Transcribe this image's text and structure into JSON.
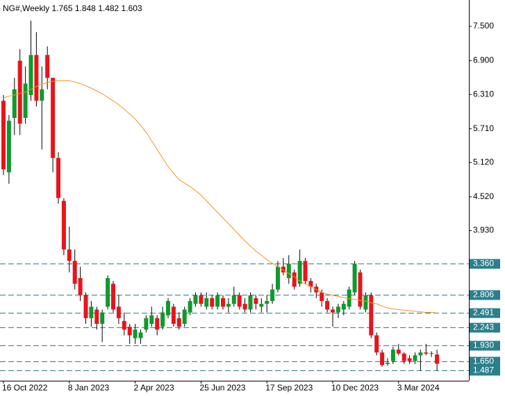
{
  "chart_data": {
    "type": "candlestick",
    "title": "NG#,Weekly  1.765 1.848 1.482 1.603",
    "categories": [
      "16 Oct 2022",
      null,
      null,
      null,
      null,
      null,
      null,
      null,
      null,
      null,
      null,
      null,
      "8 Jan 2023",
      null,
      null,
      null,
      null,
      null,
      null,
      null,
      null,
      null,
      null,
      null,
      "2 Apr 2023",
      null,
      null,
      null,
      null,
      null,
      null,
      null,
      null,
      null,
      null,
      null,
      "25 Jun 2023",
      null,
      null,
      null,
      null,
      null,
      null,
      null,
      null,
      null,
      null,
      null,
      "17 Sep 2023",
      null,
      null,
      null,
      null,
      null,
      null,
      null,
      null,
      null,
      null,
      null,
      "10 Dec 2023",
      null,
      null,
      null,
      null,
      null,
      null,
      null,
      null,
      null,
      null,
      null,
      "3 Mar 2024",
      null,
      null,
      null,
      null,
      null,
      null,
      null
    ],
    "open": [
      6.2,
      4.95,
      5.9,
      6.9,
      5.9,
      6.3,
      7.0,
      6.2,
      7.0,
      6.6,
      5.2,
      4.45,
      3.6,
      3.4,
      3.1,
      2.8,
      2.4,
      2.55,
      2.3,
      2.6,
      3.0,
      2.6,
      2.35,
      2.25,
      2.05,
      2.05,
      2.2,
      2.3,
      2.4,
      2.25,
      2.45,
      2.6,
      2.4,
      2.3,
      2.5,
      2.65,
      2.8,
      2.6,
      2.75,
      2.6,
      2.75,
      2.6,
      2.65,
      2.8,
      2.65,
      2.55,
      2.75,
      2.6,
      2.65,
      2.7,
      2.9,
      3.3,
      3.1,
      3.2,
      3.0,
      3.4,
      3.05,
      2.95,
      2.85,
      2.7,
      2.55,
      2.5,
      2.55,
      2.6,
      2.85,
      3.2,
      2.55,
      2.8,
      2.1,
      1.8,
      1.6,
      1.65,
      1.85,
      1.78,
      1.7,
      1.65,
      1.75,
      1.8,
      1.78,
      1.765
    ],
    "high": [
      6.3,
      5.95,
      6.6,
      7.1,
      6.8,
      7.6,
      7.4,
      6.8,
      7.15,
      6.6,
      5.3,
      4.5,
      4.0,
      3.6,
      3.3,
      2.85,
      2.7,
      2.6,
      2.55,
      3.15,
      3.05,
      2.8,
      2.5,
      2.3,
      2.3,
      2.2,
      2.45,
      2.6,
      2.45,
      2.6,
      2.75,
      2.65,
      2.5,
      2.6,
      2.75,
      2.85,
      2.85,
      2.85,
      2.8,
      2.85,
      2.8,
      2.75,
      2.95,
      2.85,
      2.75,
      2.85,
      2.8,
      2.75,
      2.8,
      3.0,
      3.4,
      3.45,
      3.5,
      3.25,
      3.6,
      3.45,
      3.1,
      3.0,
      2.9,
      2.75,
      2.6,
      2.65,
      2.7,
      2.95,
      3.4,
      3.25,
      2.85,
      2.85,
      2.15,
      1.85,
      1.7,
      1.9,
      1.95,
      1.8,
      1.75,
      1.8,
      1.85,
      1.95,
      1.82,
      1.848
    ],
    "low": [
      4.9,
      4.75,
      5.6,
      5.6,
      5.8,
      6.2,
      6.1,
      5.35,
      6.4,
      4.95,
      4.4,
      3.5,
      3.2,
      2.9,
      2.7,
      2.3,
      2.25,
      2.2,
      1.98,
      2.55,
      2.5,
      2.3,
      2.1,
      1.95,
      1.95,
      1.95,
      2.15,
      2.25,
      2.1,
      2.2,
      2.4,
      2.25,
      2.2,
      2.25,
      2.45,
      2.6,
      2.6,
      2.55,
      2.55,
      2.55,
      2.55,
      2.5,
      2.6,
      2.55,
      2.5,
      2.5,
      2.55,
      2.5,
      2.5,
      2.65,
      2.85,
      3.15,
      3.0,
      2.9,
      2.95,
      3.0,
      2.85,
      2.75,
      2.6,
      2.5,
      2.25,
      2.4,
      2.45,
      2.55,
      2.8,
      2.55,
      2.5,
      2.05,
      1.75,
      1.55,
      1.57,
      1.6,
      1.75,
      1.6,
      1.6,
      1.6,
      1.48,
      1.75,
      1.72,
      1.482
    ],
    "close": [
      5.0,
      5.85,
      6.4,
      5.8,
      6.5,
      7.0,
      6.2,
      6.4,
      6.6,
      5.2,
      4.5,
      3.6,
      3.4,
      3.0,
      2.8,
      2.4,
      2.6,
      2.3,
      2.5,
      3.1,
      2.55,
      2.4,
      2.2,
      2.1,
      2.2,
      2.15,
      2.4,
      2.45,
      2.2,
      2.5,
      2.7,
      2.3,
      2.25,
      2.55,
      2.7,
      2.8,
      2.65,
      2.75,
      2.6,
      2.8,
      2.6,
      2.65,
      2.8,
      2.6,
      2.55,
      2.8,
      2.65,
      2.65,
      2.7,
      2.9,
      3.3,
      3.2,
      3.35,
      2.95,
      3.4,
      3.05,
      2.95,
      2.85,
      2.7,
      2.55,
      2.5,
      2.6,
      2.65,
      2.9,
      3.35,
      2.6,
      2.8,
      2.1,
      1.8,
      1.58,
      1.62,
      1.85,
      1.78,
      1.65,
      1.65,
      1.75,
      1.8,
      1.78,
      1.79,
      1.603
    ],
    "up_color": "#0e9a2c",
    "down_color": "#e8141c",
    "ma": {
      "color": "#f0961e",
      "values": [
        6.25,
        6.28,
        6.3,
        6.33,
        6.35,
        6.4,
        6.45,
        6.49,
        6.52,
        6.54,
        6.55,
        6.55,
        6.55,
        6.53,
        6.5,
        6.46,
        6.42,
        6.37,
        6.32,
        6.26,
        6.2,
        6.13,
        6.05,
        5.97,
        5.88,
        5.77,
        5.65,
        5.5,
        5.35,
        5.2,
        5.05,
        4.93,
        4.82,
        4.76,
        4.7,
        4.63,
        4.55,
        4.45,
        4.35,
        4.25,
        4.15,
        4.05,
        3.95,
        3.85,
        3.75,
        3.66,
        3.57,
        3.5,
        3.42,
        3.36,
        3.3,
        3.24,
        3.18,
        3.12,
        3.05,
        3.0,
        2.95,
        2.9,
        2.85,
        2.82,
        2.8,
        2.78,
        2.76,
        2.74,
        2.73,
        2.71,
        2.7,
        2.67,
        2.65,
        2.61,
        2.58,
        2.56,
        2.55,
        2.54,
        2.53,
        2.52,
        2.51,
        2.5,
        2.5,
        2.491
      ]
    },
    "ylim": [
      1.306,
      7.961
    ],
    "yticks": [
      {
        "value": 7.5,
        "label": "7.500"
      },
      {
        "value": 6.9,
        "label": "6.900"
      },
      {
        "value": 6.31,
        "label": "6.310"
      },
      {
        "value": 5.71,
        "label": "5.710"
      },
      {
        "value": 5.12,
        "label": "5.120"
      },
      {
        "value": 4.52,
        "label": "4.520"
      },
      {
        "value": 3.93,
        "label": "3.930"
      }
    ],
    "levels": [
      {
        "value": 3.36,
        "label": "3.360"
      },
      {
        "value": 2.806,
        "label": "2.806"
      },
      {
        "value": 2.491,
        "label": "2.491"
      },
      {
        "value": 2.243,
        "label": "2.243"
      },
      {
        "value": 1.93,
        "label": "1.930"
      },
      {
        "value": 1.65,
        "label": "1.650"
      },
      {
        "value": 1.487,
        "label": "1.487"
      }
    ],
    "level_color": "#2a7f8c"
  }
}
